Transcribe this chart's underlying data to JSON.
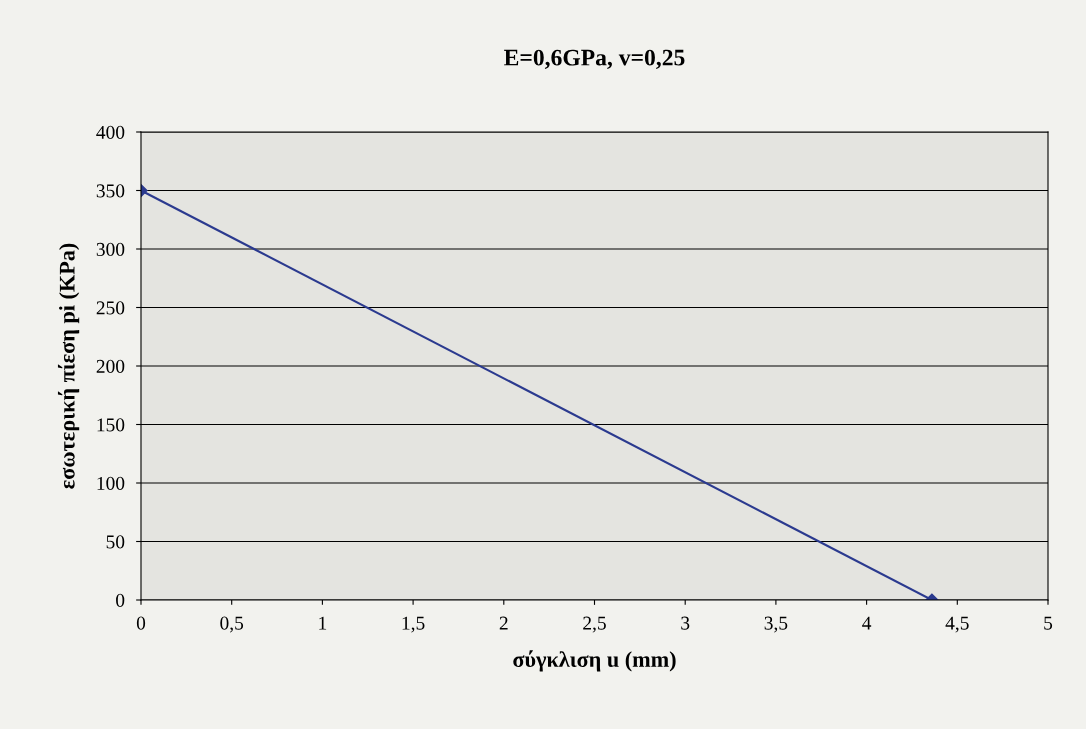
{
  "chart_data": {
    "type": "line",
    "title": "E=0,6GPa, v=0,25",
    "xlabel": "σύγκλιση u (mm)",
    "ylabel": "εσωτερική πίεση pi (KPa)",
    "series": [
      {
        "color": "#2b3a8f",
        "x": [
          0,
          4.36
        ],
        "values": [
          350,
          0
        ]
      }
    ],
    "xlim": [
      0,
      5
    ],
    "ylim": [
      0,
      400
    ],
    "xticks": [
      0,
      {
        "value": 0.5,
        "label": "0,5"
      },
      1,
      {
        "value": 1.5,
        "label": "1,5"
      },
      2,
      {
        "value": 2.5,
        "label": "2,5"
      },
      3,
      {
        "value": 3.5,
        "label": "3,5"
      },
      4,
      {
        "value": 4.5,
        "label": "4,5"
      },
      5
    ],
    "yticks": [
      0,
      50,
      100,
      150,
      200,
      250,
      300,
      350,
      400
    ],
    "grid": "y",
    "marker": "diamond",
    "line_style": "solid",
    "legend": false
  }
}
